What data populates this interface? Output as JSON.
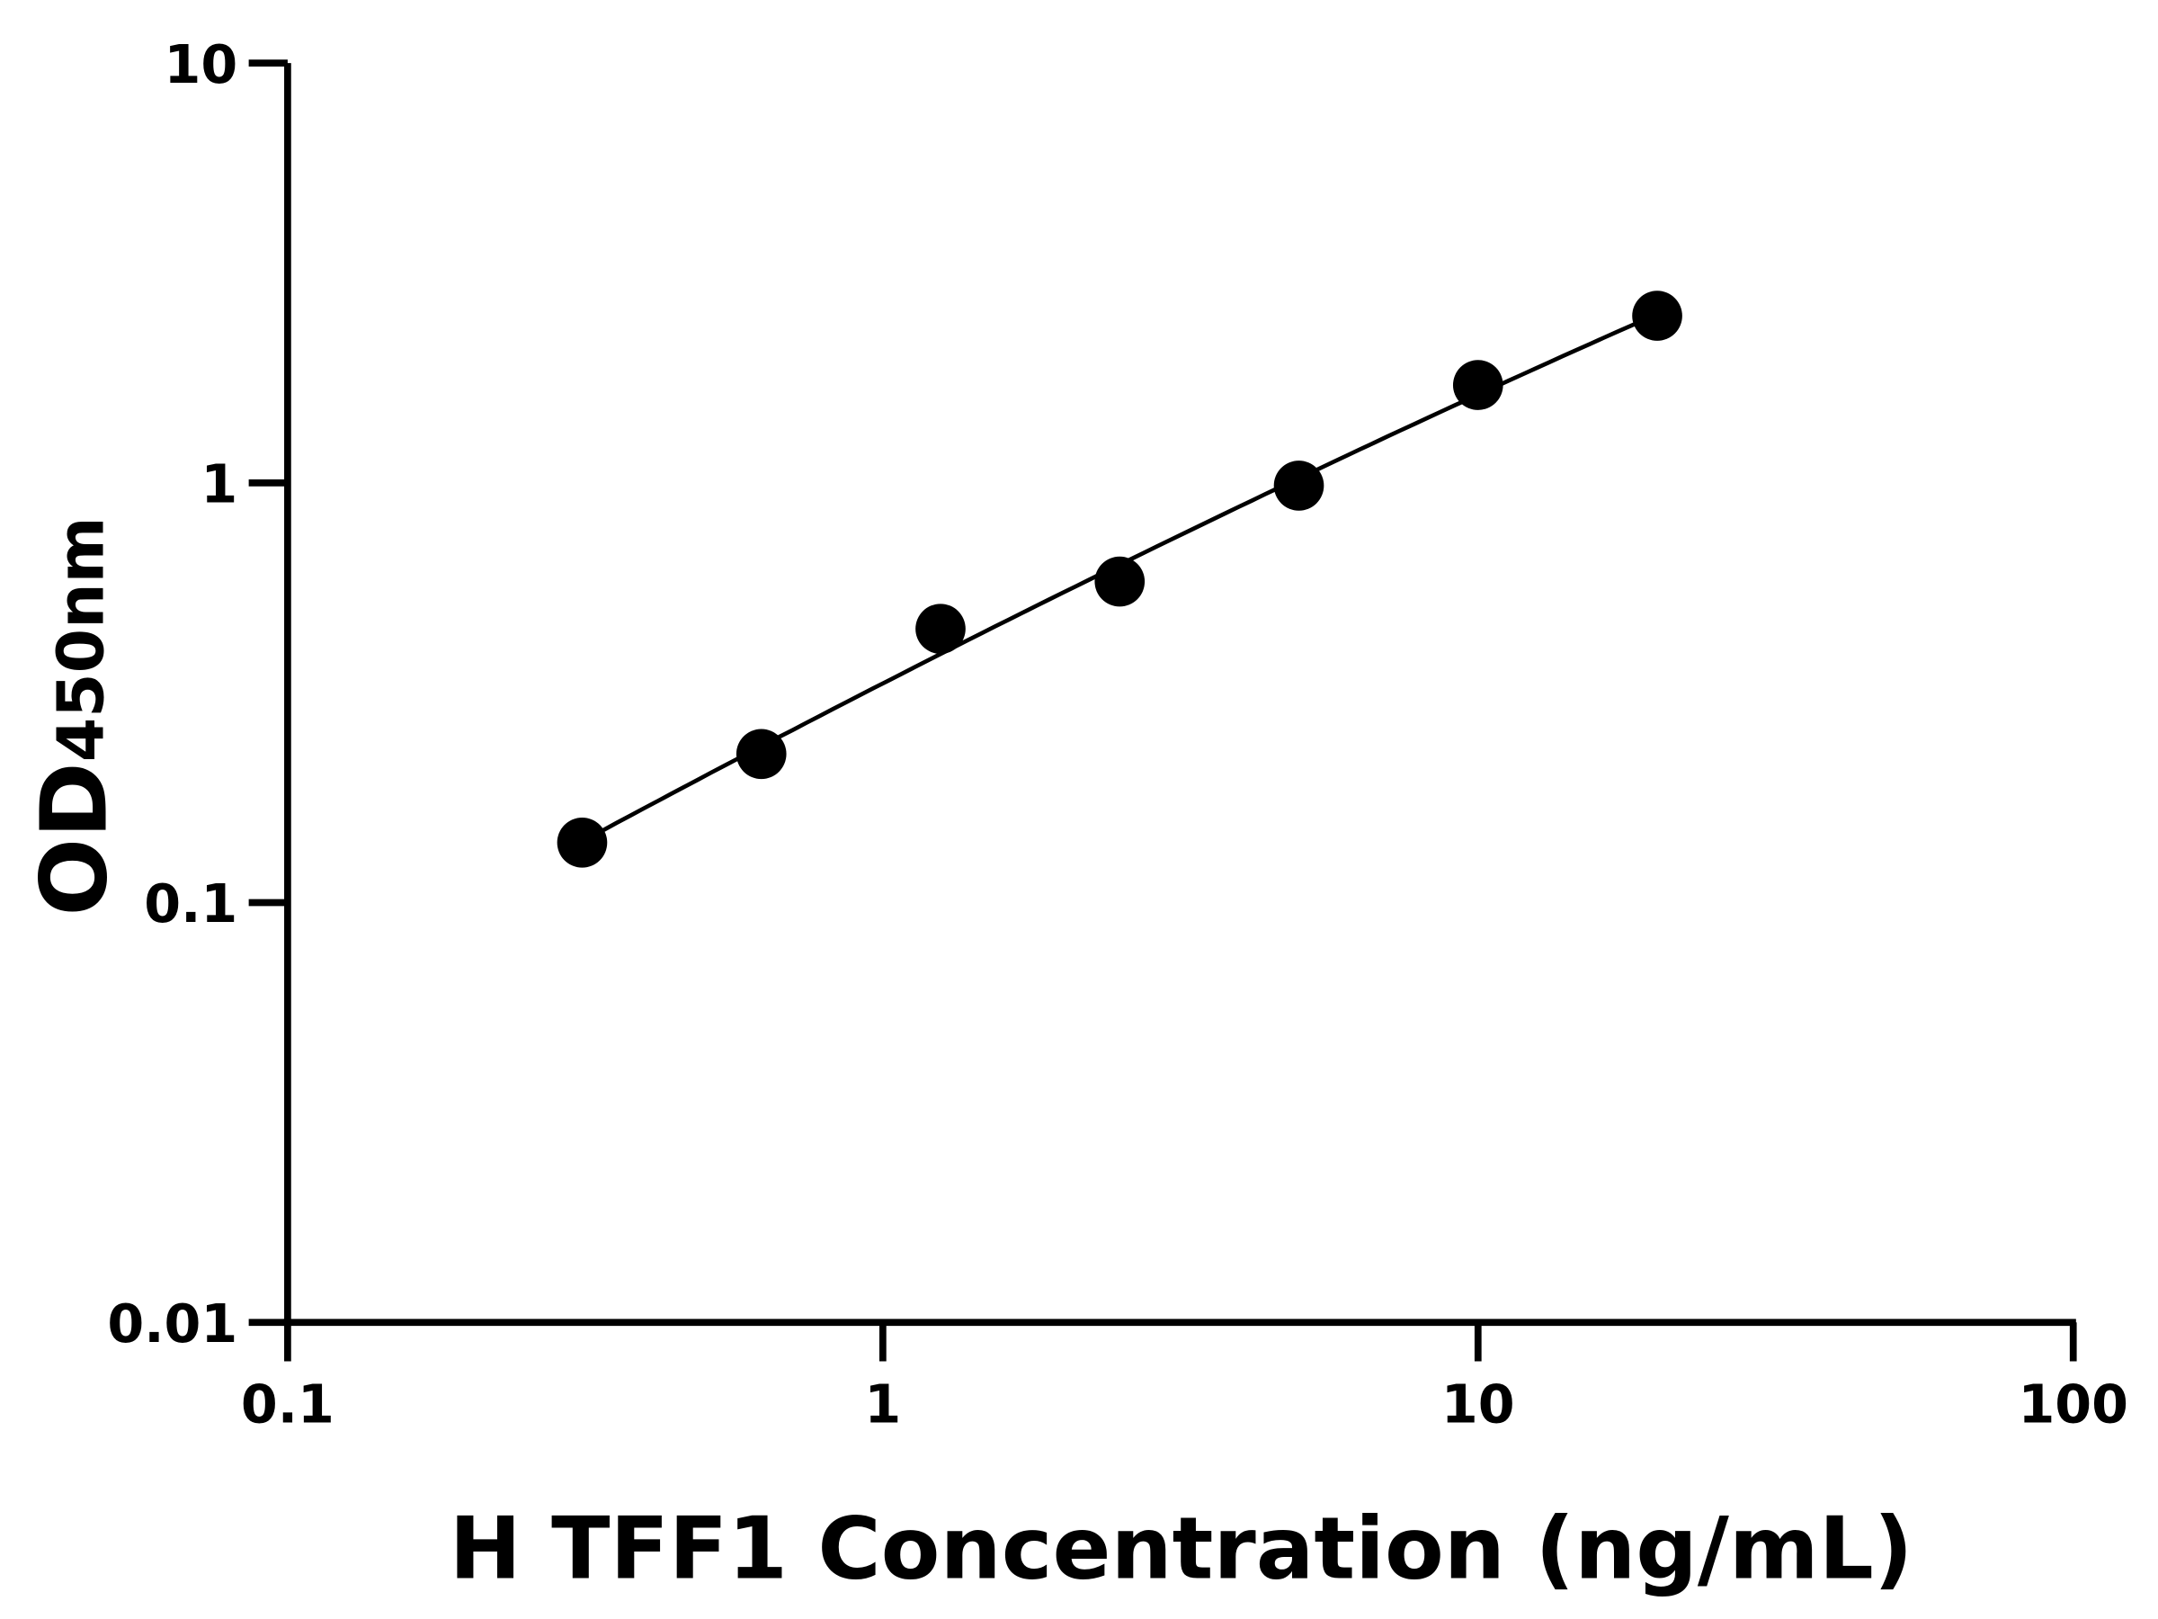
{
  "chart_data": {
    "type": "scatter",
    "title": "",
    "xlabel": "H TFF1 Concentration (ng/mL)",
    "ylabel_main": "OD",
    "ylabel_sub": "450nm",
    "x_scale": "log",
    "y_scale": "log",
    "xlim": [
      0.1,
      100
    ],
    "ylim": [
      0.01,
      10
    ],
    "x_ticks": [
      0.1,
      1,
      10,
      100
    ],
    "x_tick_labels": [
      "0.1",
      "1",
      "10",
      "100"
    ],
    "y_ticks": [
      0.01,
      0.1,
      1,
      10
    ],
    "y_tick_labels": [
      "0.01",
      "0.1",
      "1",
      "10"
    ],
    "grid": false,
    "legend": "none",
    "fit_curve": true,
    "color": "#000000",
    "points": [
      {
        "x": 0.3125,
        "y": 0.139
      },
      {
        "x": 0.625,
        "y": 0.226
      },
      {
        "x": 1.25,
        "y": 0.449
      },
      {
        "x": 2.5,
        "y": 0.582
      },
      {
        "x": 5,
        "y": 0.985
      },
      {
        "x": 10,
        "y": 1.71
      },
      {
        "x": 20,
        "y": 2.5
      }
    ]
  }
}
